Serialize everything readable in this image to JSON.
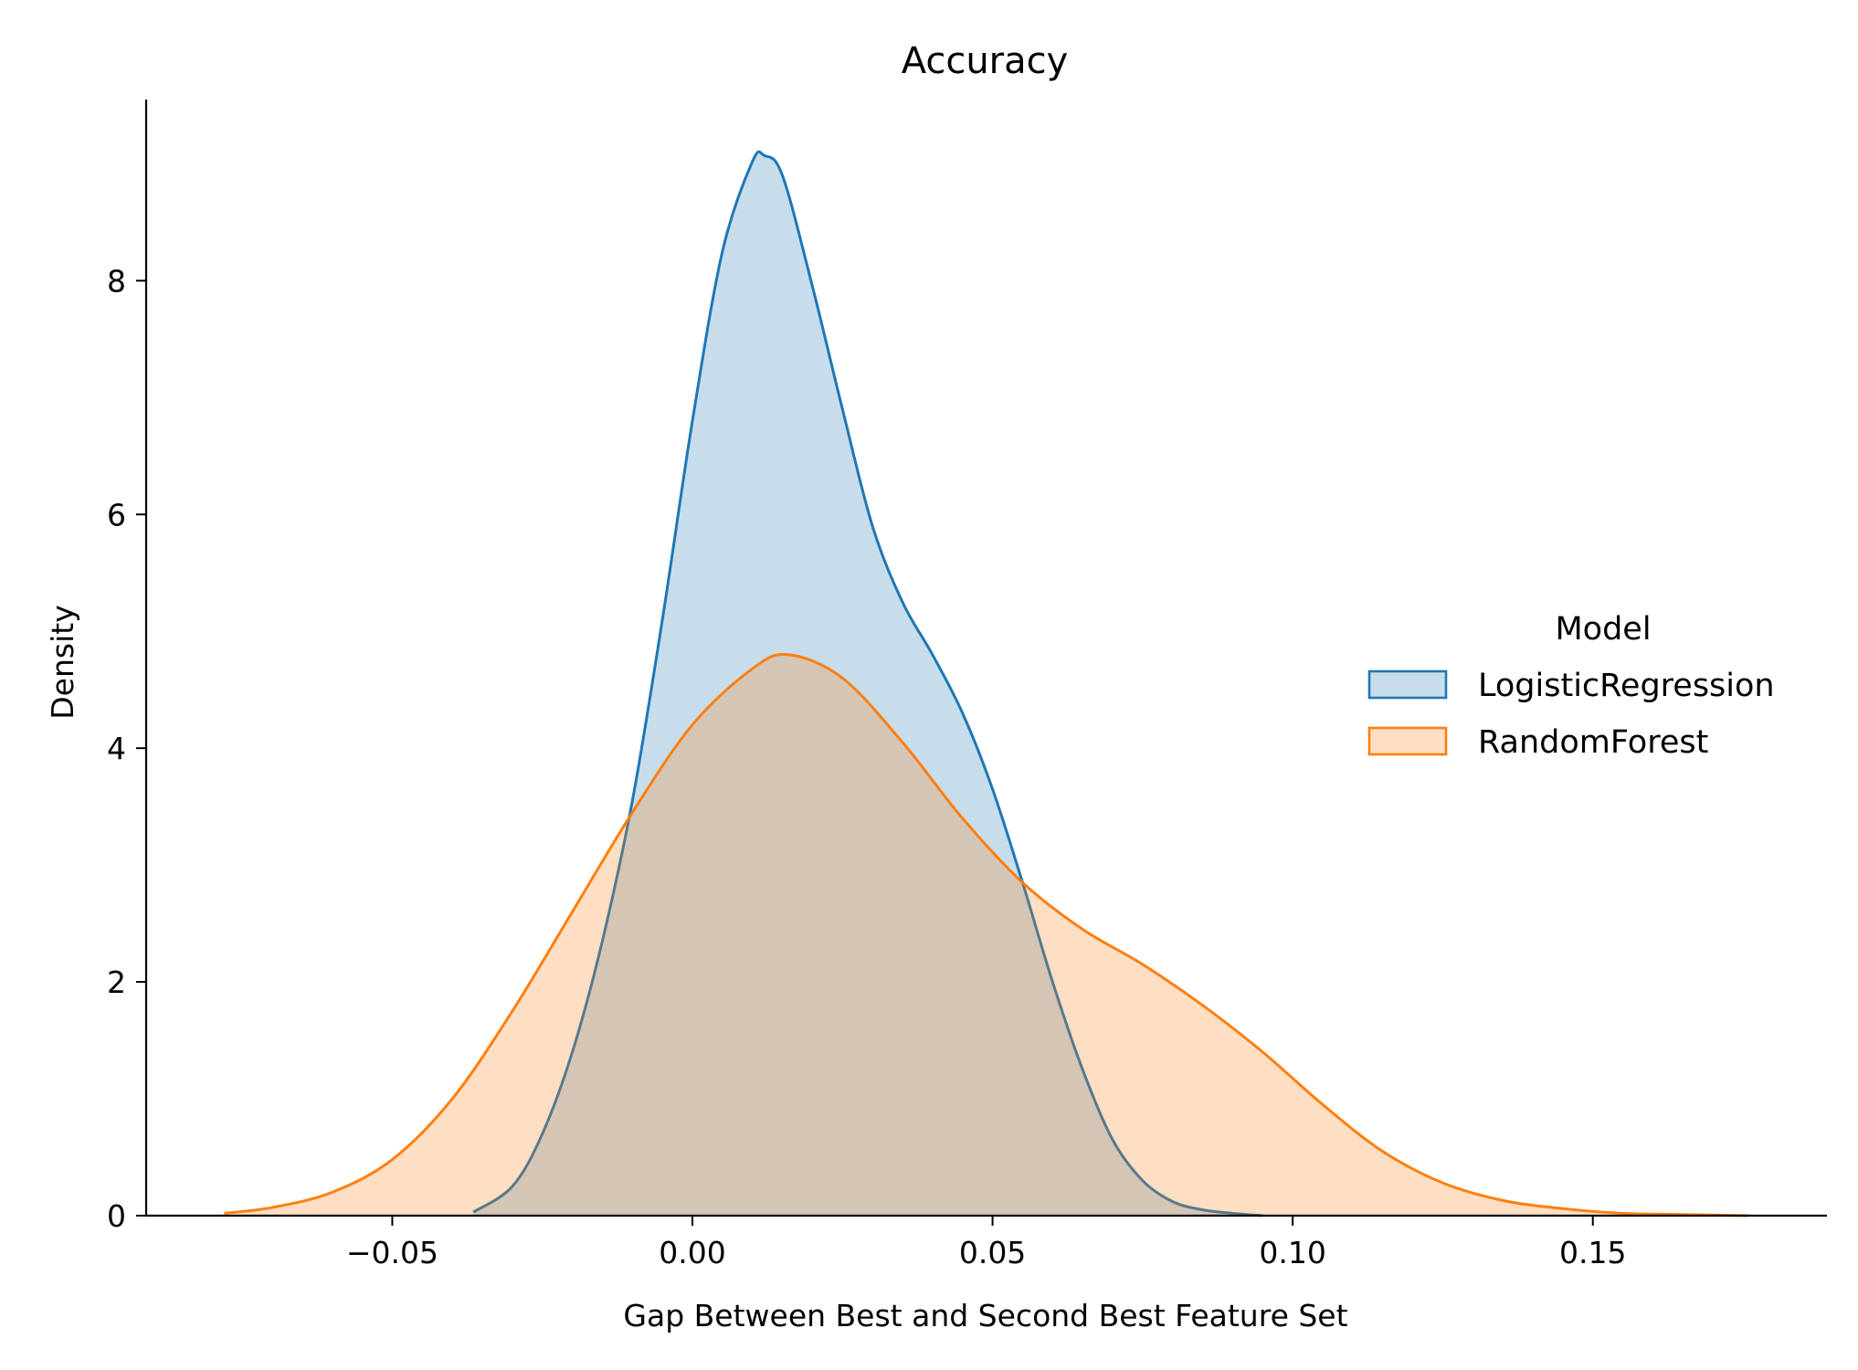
{
  "chart_data": {
    "type": "area",
    "title": "Accuracy",
    "xlabel": "Gap Between Best and Second Best Feature Set",
    "ylabel": "Density",
    "xlim": [
      -0.091,
      0.189
    ],
    "ylim": [
      0,
      9.55
    ],
    "x_ticks": [
      -0.05,
      0.0,
      0.05,
      0.1,
      0.15
    ],
    "x_tick_labels": [
      "−0.05",
      "0.00",
      "0.05",
      "0.10",
      "0.15"
    ],
    "y_ticks": [
      0,
      2,
      4,
      6,
      8
    ],
    "y_tick_labels": [
      "0",
      "2",
      "4",
      "6",
      "8"
    ],
    "grid": false,
    "legend": {
      "title": "Model",
      "placement": "center-right"
    },
    "series": [
      {
        "name": "LogisticRegression",
        "color": "#1f77b4",
        "fill_opacity": 0.25,
        "x": [
          -0.0365,
          -0.03,
          -0.025,
          -0.02,
          -0.015,
          -0.01,
          -0.005,
          0.0,
          0.005,
          0.01,
          0.012,
          0.015,
          0.02,
          0.025,
          0.03,
          0.035,
          0.04,
          0.045,
          0.05,
          0.055,
          0.06,
          0.065,
          0.07,
          0.075,
          0.08,
          0.085,
          0.09,
          0.095
        ],
        "y": [
          0.03,
          0.25,
          0.7,
          1.4,
          2.35,
          3.55,
          5.1,
          6.8,
          8.25,
          9.02,
          9.07,
          8.9,
          7.95,
          6.9,
          5.9,
          5.25,
          4.8,
          4.3,
          3.65,
          2.85,
          2.0,
          1.25,
          0.65,
          0.3,
          0.12,
          0.05,
          0.02,
          0.0
        ]
      },
      {
        "name": "RandomForest",
        "color": "#ff7f0e",
        "fill_opacity": 0.25,
        "x": [
          -0.078,
          -0.07,
          -0.06,
          -0.05,
          -0.04,
          -0.03,
          -0.02,
          -0.01,
          0.0,
          0.01,
          0.016,
          0.025,
          0.035,
          0.045,
          0.055,
          0.065,
          0.075,
          0.085,
          0.095,
          0.105,
          0.115,
          0.125,
          0.135,
          0.145,
          0.155,
          0.165,
          0.176
        ],
        "y": [
          0.02,
          0.07,
          0.2,
          0.48,
          1.0,
          1.75,
          2.6,
          3.45,
          4.2,
          4.68,
          4.8,
          4.6,
          4.05,
          3.4,
          2.85,
          2.45,
          2.15,
          1.8,
          1.4,
          0.95,
          0.55,
          0.28,
          0.13,
          0.06,
          0.02,
          0.01,
          0.0
        ]
      }
    ]
  }
}
